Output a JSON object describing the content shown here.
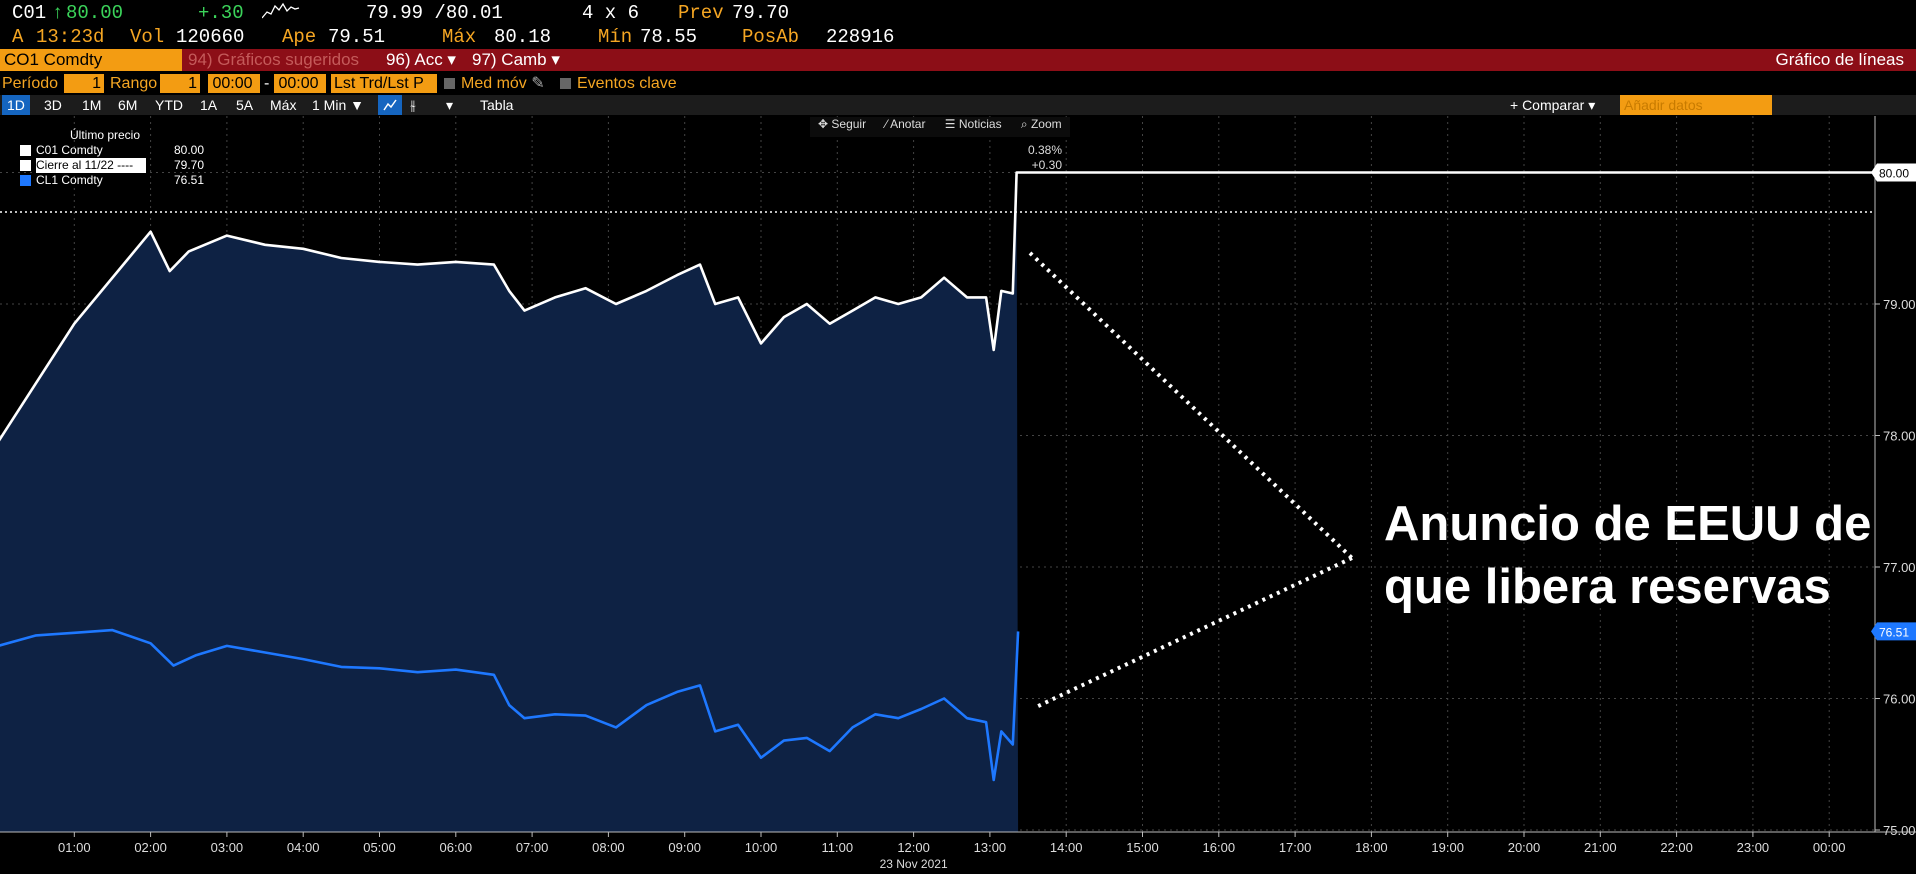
{
  "quote": {
    "ticker": "C01",
    "arrow": "↑",
    "last": "80.00",
    "change": "+.30",
    "bid_ask": "79.99 /80.01",
    "size": "4 x 6",
    "prev_label": "Prev",
    "prev": "79.70",
    "time_label": "A",
    "time": "13:23d",
    "vol_label": "Vol",
    "vol": "120660",
    "open_label": "Ape",
    "open": "79.51",
    "high_label": "Máx",
    "high": "80.18",
    "low_label": "Mín",
    "low": "78.55",
    "oi_label": "PosAb",
    "oi": "228916"
  },
  "toolbar": {
    "security": "CO1 Comdty",
    "suggested": "94) Gráficos sugeridos",
    "actions": "96) Acc ▾",
    "change": "97) Camb ▾",
    "chart_type": "Gráfico de líneas"
  },
  "options": {
    "period_label": "Período",
    "period_value": "1",
    "range_label": "Rango",
    "range_value": "1",
    "time_from": "00:00",
    "dash": "-",
    "time_to": "00:00",
    "lst": "Lst Trd/Lst P",
    "moving_avg": "Med móv",
    "events": "Eventos clave"
  },
  "periods": {
    "items": [
      "1D",
      "3D",
      "1M",
      "6M",
      "YTD",
      "1A",
      "5A",
      "Máx"
    ],
    "interval": "1 Min ▼",
    "table": "Tabla",
    "compare": "+ Comparar ▾",
    "add_data_placeholder": "Añadir datos"
  },
  "chart_tools": [
    "✥ Seguir",
    "⁄ Anotar",
    "☰ Noticias",
    "⌕ Zoom"
  ],
  "legend": {
    "title": "Último precio",
    "rows": [
      {
        "name": "C01 Comdty",
        "value": "80.00",
        "color": "#ffffff"
      },
      {
        "name": "Cierre al 11/22 ----",
        "value": "79.70",
        "color": "#ffffff"
      },
      {
        "name": "CL1 Comdty",
        "value": "76.51",
        "color": "#1e78ff"
      }
    ]
  },
  "annotation": {
    "line1": "Anuncio de EEUU de",
    "line2": "que libera reservas"
  },
  "chart_data": {
    "type": "line",
    "x_label": "23 Nov 2021",
    "x_ticks": [
      "01:00",
      "02:00",
      "03:00",
      "04:00",
      "05:00",
      "06:00",
      "07:00",
      "08:00",
      "09:00",
      "10:00",
      "11:00",
      "12:00",
      "13:00",
      "14:00",
      "15:00",
      "16:00",
      "17:00",
      "18:00",
      "19:00",
      "20:00",
      "21:00",
      "22:00",
      "23:00",
      "00:00"
    ],
    "y_ticks": [
      "80.00",
      "79.00",
      "78.00",
      "77.00",
      "76.00",
      "75.00"
    ],
    "ylim": [
      74.9,
      80.7
    ],
    "xlim_hours": [
      0,
      25
    ],
    "prev_close": 79.7,
    "change_pct": "0.38%",
    "change_abs": "+0.30",
    "series": [
      {
        "name": "C01 Comdty",
        "color": "#ffffff",
        "last_label": "80.00",
        "points": [
          [
            0,
            77.95
          ],
          [
            1.0,
            78.85
          ],
          [
            2.0,
            79.55
          ],
          [
            2.25,
            79.25
          ],
          [
            2.5,
            79.4
          ],
          [
            3.0,
            79.52
          ],
          [
            3.5,
            79.45
          ],
          [
            4.0,
            79.42
          ],
          [
            4.5,
            79.35
          ],
          [
            5.0,
            79.32
          ],
          [
            5.5,
            79.3
          ],
          [
            6.0,
            79.32
          ],
          [
            6.5,
            79.3
          ],
          [
            6.7,
            79.1
          ],
          [
            6.9,
            78.95
          ],
          [
            7.3,
            79.05
          ],
          [
            7.7,
            79.12
          ],
          [
            8.1,
            79.0
          ],
          [
            8.5,
            79.1
          ],
          [
            8.9,
            79.22
          ],
          [
            9.2,
            79.3
          ],
          [
            9.4,
            79.0
          ],
          [
            9.7,
            79.05
          ],
          [
            10.0,
            78.7
          ],
          [
            10.3,
            78.9
          ],
          [
            10.6,
            79.0
          ],
          [
            10.9,
            78.85
          ],
          [
            11.2,
            78.95
          ],
          [
            11.5,
            79.05
          ],
          [
            11.8,
            79.0
          ],
          [
            12.1,
            79.05
          ],
          [
            12.4,
            79.2
          ],
          [
            12.7,
            79.05
          ],
          [
            12.95,
            79.05
          ],
          [
            13.05,
            78.65
          ],
          [
            13.15,
            79.1
          ],
          [
            13.3,
            79.08
          ],
          [
            13.35,
            80.0
          ],
          [
            25.0,
            80.0
          ]
        ]
      },
      {
        "name": "CL1 Comdty",
        "color": "#1e78ff",
        "last_label": "76.51",
        "points": [
          [
            0,
            76.4
          ],
          [
            0.5,
            76.48
          ],
          [
            1.0,
            76.5
          ],
          [
            1.5,
            76.52
          ],
          [
            2.0,
            76.42
          ],
          [
            2.3,
            76.25
          ],
          [
            2.6,
            76.33
          ],
          [
            3.0,
            76.4
          ],
          [
            3.5,
            76.35
          ],
          [
            4.0,
            76.3
          ],
          [
            4.5,
            76.24
          ],
          [
            5.0,
            76.23
          ],
          [
            5.5,
            76.2
          ],
          [
            6.0,
            76.22
          ],
          [
            6.5,
            76.18
          ],
          [
            6.7,
            75.95
          ],
          [
            6.9,
            75.85
          ],
          [
            7.3,
            75.88
          ],
          [
            7.7,
            75.87
          ],
          [
            8.1,
            75.78
          ],
          [
            8.5,
            75.95
          ],
          [
            8.9,
            76.05
          ],
          [
            9.2,
            76.1
          ],
          [
            9.4,
            75.75
          ],
          [
            9.7,
            75.8
          ],
          [
            10.0,
            75.55
          ],
          [
            10.3,
            75.68
          ],
          [
            10.6,
            75.7
          ],
          [
            10.9,
            75.6
          ],
          [
            11.2,
            75.78
          ],
          [
            11.5,
            75.88
          ],
          [
            11.8,
            75.85
          ],
          [
            12.1,
            75.92
          ],
          [
            12.4,
            76.0
          ],
          [
            12.7,
            75.85
          ],
          [
            12.95,
            75.82
          ],
          [
            13.05,
            75.38
          ],
          [
            13.15,
            75.75
          ],
          [
            13.3,
            75.65
          ],
          [
            13.37,
            76.51
          ]
        ]
      }
    ]
  }
}
